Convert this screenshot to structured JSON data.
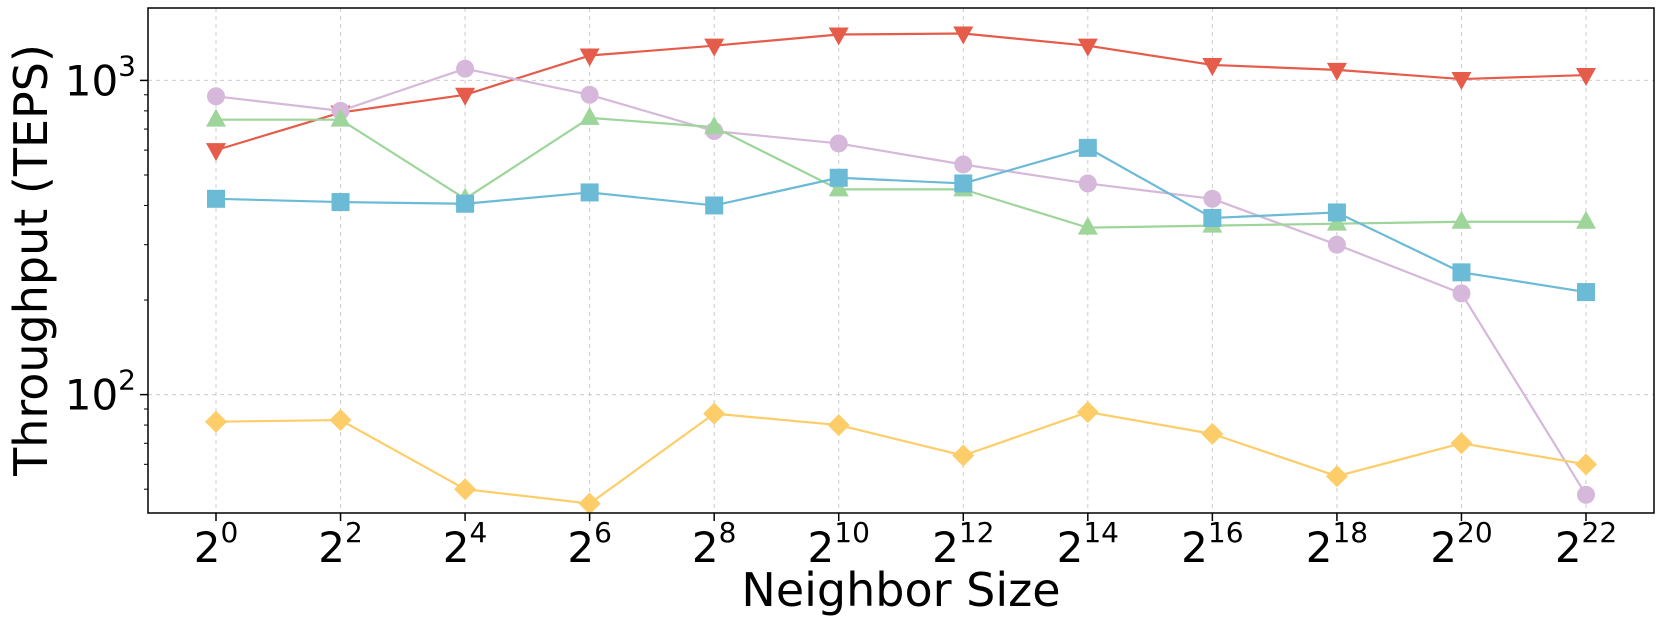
{
  "chart_data": {
    "type": "line",
    "title": "",
    "xlabel": "Neighbor Size",
    "ylabel": "Throughput (TEPS)",
    "yscale": "log",
    "ylim": [
      42,
      1700
    ],
    "grid": true,
    "legend": "none",
    "x": [
      0,
      2,
      4,
      6,
      8,
      10,
      12,
      14,
      16,
      18,
      20,
      22
    ],
    "x_tick_labels": [
      {
        "base": "2",
        "exp": "0"
      },
      {
        "base": "2",
        "exp": "2"
      },
      {
        "base": "2",
        "exp": "4"
      },
      {
        "base": "2",
        "exp": "6"
      },
      {
        "base": "2",
        "exp": "8"
      },
      {
        "base": "2",
        "exp": "10"
      },
      {
        "base": "2",
        "exp": "12"
      },
      {
        "base": "2",
        "exp": "14"
      },
      {
        "base": "2",
        "exp": "16"
      },
      {
        "base": "2",
        "exp": "18"
      },
      {
        "base": "2",
        "exp": "20"
      },
      {
        "base": "2",
        "exp": "22"
      }
    ],
    "y_ticks": [
      {
        "value": 100,
        "base": "10",
        "exp": "2"
      },
      {
        "value": 1000,
        "base": "10",
        "exp": "3"
      }
    ],
    "series": [
      {
        "name": "red",
        "color": "#e55c4a",
        "marker": "triangle-down",
        "values": [
          600,
          790,
          900,
          1200,
          1290,
          1400,
          1410,
          1290,
          1120,
          1080,
          1010,
          1040
        ]
      },
      {
        "name": "purple",
        "color": "#d6b8da",
        "marker": "circle",
        "values": [
          890,
          800,
          1090,
          900,
          690,
          630,
          540,
          470,
          420,
          300,
          210,
          48
        ]
      },
      {
        "name": "green",
        "color": "#9dd59a",
        "marker": "triangle-up",
        "values": [
          750,
          750,
          420,
          760,
          710,
          450,
          450,
          340,
          345,
          350,
          355,
          355
        ]
      },
      {
        "name": "blue",
        "color": "#6bbad6",
        "marker": "square",
        "values": [
          420,
          410,
          405,
          440,
          400,
          490,
          470,
          610,
          365,
          380,
          245,
          212
        ]
      },
      {
        "name": "yellow",
        "color": "#fdcd69",
        "marker": "diamond",
        "values": [
          82,
          83,
          50,
          45,
          87,
          80,
          64,
          88,
          75,
          55,
          70,
          60
        ]
      }
    ]
  }
}
